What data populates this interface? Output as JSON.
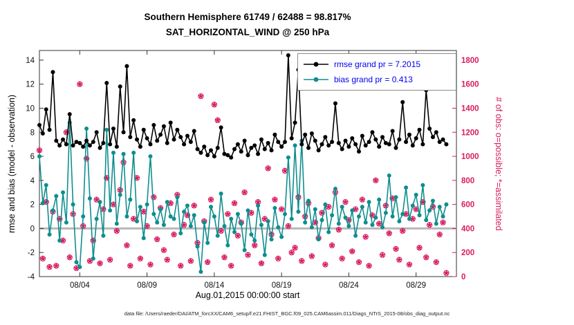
{
  "chart_data": {
    "type": "line",
    "title_line1": "Southern Hemisphere 61749 / 62488 = 98.817%",
    "title_line2": "SAT_HORIZONTAL_WIND @ 250 hPa",
    "xlabel": "Aug.01,2015 00:00:00 start",
    "ylabel_left": "rmse and bias (model - observation)",
    "ylabel_right": "# of obs: o=possible; *=assimilated",
    "caption": "data file: /Users/raeder/DAI/ATM_forcXX/CAM6_setup/f.e21.FHIST_BGC.f09_025.CAM6assim.011/Diags_NTrS_2015-08/obs_diag_output.nc",
    "xlim_days": [
      0,
      31
    ],
    "x_start_day": 0,
    "x_step_days": 0.25,
    "xticks": [
      {
        "day": 3,
        "label": "08/04"
      },
      {
        "day": 8,
        "label": "08/09"
      },
      {
        "day": 13,
        "label": "08/14"
      },
      {
        "day": 18,
        "label": "08/19"
      },
      {
        "day": 23,
        "label": "08/24"
      },
      {
        "day": 28,
        "label": "08/29"
      }
    ],
    "ylim_left": [
      -4,
      14.8
    ],
    "yticks_left": [
      -4,
      -2,
      0,
      2,
      4,
      6,
      8,
      10,
      12,
      14
    ],
    "ylim_right": [
      0,
      1880
    ],
    "yticks_right": [
      0,
      200,
      400,
      600,
      800,
      1000,
      1200,
      1400,
      1600,
      1800
    ],
    "zero_line": true,
    "legend_text_color": "#0000ee",
    "legend": [
      {
        "label": "rmse grand pr = 7.2015",
        "series": "rmse"
      },
      {
        "label": "bias grand pr = 0.413",
        "series": "bias"
      }
    ],
    "series": [
      {
        "name": "rmse",
        "color": "#000000",
        "values": [
          8.6,
          7.9,
          9.9,
          8.2,
          13.0,
          7.3,
          6.9,
          7.4,
          7.0,
          9.5,
          6.9,
          7.2,
          7.1,
          6.8,
          7.3,
          6.9,
          7.2,
          8.0,
          6.7,
          7.1,
          12.1,
          7.0,
          8.3,
          6.8,
          11.8,
          8.0,
          13.5,
          7.6,
          9.0,
          7.4,
          6.8,
          8.2,
          7.5,
          7.0,
          8.6,
          7.3,
          7.8,
          8.5,
          7.1,
          8.8,
          7.4,
          8.2,
          7.6,
          7.0,
          7.7,
          7.2,
          8.1,
          6.6,
          6.3,
          6.8,
          6.1,
          6.5,
          6.0,
          6.7,
          8.4,
          6.2,
          6.1,
          5.9,
          6.6,
          7.0,
          6.4,
          7.3,
          6.1,
          6.7,
          6.9,
          6.2,
          7.4,
          6.6,
          7.1,
          6.5,
          7.8,
          7.2,
          6.8,
          7.2,
          14.4,
          7.5,
          8.8,
          13.2,
          7.0,
          7.8,
          6.7,
          7.9,
          7.3,
          6.5,
          7.0,
          7.6,
          6.9,
          7.2,
          10.4,
          7.1,
          6.6,
          7.3,
          6.8,
          7.5,
          7.0,
          6.4,
          7.7,
          6.9,
          7.2,
          8.0,
          7.4,
          6.8,
          7.6,
          7.1,
          7.0,
          8.1,
          6.7,
          7.4,
          10.5,
          7.2,
          7.8,
          6.9,
          7.5,
          8.2,
          7.0,
          11.5,
          8.3,
          7.6,
          8.0,
          7.2,
          7.4,
          7.0
        ]
      },
      {
        "name": "bias",
        "color": "#0e8e8e",
        "values": [
          6.0,
          2.1,
          3.6,
          -0.5,
          1.5,
          2.7,
          -1.0,
          3.0,
          0.5,
          8.8,
          2.0,
          -2.8,
          -3.2,
          1.0,
          8.3,
          2.5,
          -2.5,
          0.8,
          2.2,
          -0.6,
          8.2,
          1.5,
          6.3,
          0.4,
          2.8,
          6.2,
          1.0,
          2.4,
          6.3,
          0.6,
          1.8,
          -0.8,
          2.0,
          6.0,
          1.2,
          0.5,
          1.6,
          0.3,
          2.2,
          1.0,
          0.8,
          2.6,
          -0.4,
          1.4,
          1.9,
          0.2,
          1.1,
          -1.5,
          -3.6,
          0.5,
          -1.2,
          1.8,
          1.0,
          -0.6,
          2.9,
          0.2,
          -1.4,
          0.8,
          -0.3,
          1.2,
          0.4,
          -1.8,
          1.5,
          -0.5,
          -1.0,
          1.9,
          0.3,
          -2.2,
          0.6,
          -0.9,
          1.7,
          0.1,
          -0.7,
          1.2,
          5.9,
          0.8,
          6.9,
          1.4,
          7.3,
          0.5,
          2.3,
          0.1,
          1.6,
          -0.9,
          0.7,
          2.0,
          -0.3,
          1.1,
          3.3,
          0.4,
          1.8,
          0.9,
          0.2,
          1.5,
          -0.6,
          1.0,
          1.8,
          0.5,
          2.2,
          0.3,
          0.9,
          2.4,
          0.1,
          1.3,
          4.4,
          1.0,
          2.6,
          0.6,
          1.2,
          3.4,
          0.8,
          1.9,
          2.8,
          1.1,
          3.6,
          0.7,
          1.5,
          2.3,
          0.4,
          1.8,
          1.0,
          2.0
        ]
      }
    ],
    "scatter": {
      "name": "obs_counts",
      "color": "#d81b60",
      "marker_possible": "circle",
      "marker_assimilated": "star",
      "values": [
        1050,
        150,
        620,
        80,
        540,
        90,
        480,
        300,
        1200,
        160,
        520,
        70,
        1600,
        420,
        980,
        130,
        300,
        640,
        110,
        560,
        820,
        140,
        600,
        380,
        720,
        950,
        260,
        90,
        480,
        820,
        150,
        540,
        420,
        100,
        660,
        310,
        570,
        220,
        140,
        610,
        350,
        680,
        90,
        430,
        510,
        130,
        590,
        280,
        1500,
        460,
        120,
        640,
        1430,
        1300,
        380,
        160,
        520,
        90,
        610,
        340,
        450,
        700,
        180,
        530,
        260,
        620,
        110,
        480,
        900,
        350,
        640,
        150,
        560,
        880,
        420,
        200,
        240,
        660,
        130,
        500,
        610,
        170,
        450,
        320,
        530,
        100,
        580,
        260,
        700,
        390,
        150,
        620,
        470,
        210,
        560,
        120,
        640,
        330,
        90,
        510,
        800,
        440,
        180,
        590,
        360,
        650,
        230,
        140,
        380,
        520,
        100,
        480,
        560,
        240,
        620,
        160,
        430,
        580,
        120,
        350,
        450,
        30
      ]
    }
  }
}
